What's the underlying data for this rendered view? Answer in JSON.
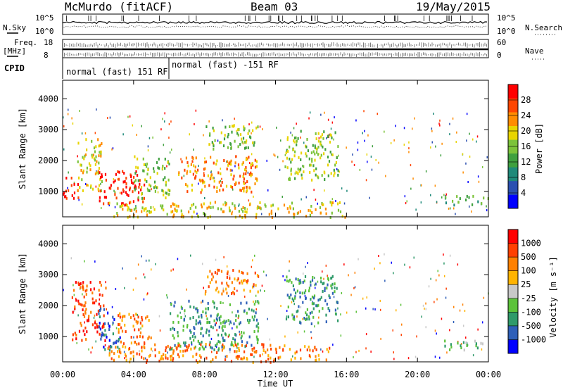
{
  "header": {
    "station": "McMurdo (fitACF)",
    "beam": "Beam 03",
    "date": "19/May/2015"
  },
  "top_panels": {
    "nsky_label": "N.Sky",
    "nsearch_label": "N.Search",
    "nsky_ticks": [
      "10^5",
      "10^0"
    ],
    "nsearch_ticks": [
      "10^5",
      "10^0"
    ],
    "freq_label_1": "Freq.",
    "freq_label_2": "[MHz]",
    "freq_ticks": [
      "18",
      "8"
    ],
    "nave_label": "Nave",
    "nave_ticks": [
      "60",
      "0"
    ],
    "cpid_label": "CPID",
    "cpid_segments": [
      {
        "label": "normal (fast) 151 RF",
        "start_hour": 0,
        "end_hour": 6
      },
      {
        "label": "normal (fast) -151 RF",
        "start_hour": 6,
        "end_hour": 24
      }
    ]
  },
  "chart_data": [
    {
      "type": "heatmap",
      "name": "Power",
      "ylabel": "Slant Range [km]",
      "xlabel": "",
      "yticks": [
        1000,
        2000,
        3000,
        4000
      ],
      "ylim": [
        180,
        4600
      ],
      "xlim": [
        0,
        24
      ],
      "colorbar": {
        "label": "Power [dB]",
        "ticks": [
          "28",
          "24",
          "20",
          "16",
          "12",
          "8",
          "4"
        ],
        "colors": [
          "#0000ff",
          "#2b50b0",
          "#1f8a7a",
          "#3fa03f",
          "#7cc33a",
          "#e8d400",
          "#ff8c00",
          "#ff4500",
          "#ff0000"
        ]
      },
      "regions": [
        {
          "t0": 0.0,
          "t1": 0.9,
          "r0": 800,
          "r1": 1500,
          "level": 8
        },
        {
          "t0": 0.8,
          "t1": 2.2,
          "r0": 1000,
          "r1": 2800,
          "level": 5
        },
        {
          "t0": 2.0,
          "t1": 4.6,
          "r0": 600,
          "r1": 1700,
          "level": 8
        },
        {
          "t0": 4.0,
          "t1": 6.0,
          "r0": 800,
          "r1": 2200,
          "level": 4
        },
        {
          "t0": 6.5,
          "t1": 11.0,
          "r0": 1000,
          "r1": 2200,
          "level": 6
        },
        {
          "t0": 8.0,
          "t1": 11.0,
          "r0": 2400,
          "r1": 3200,
          "level": 4
        },
        {
          "t0": 12.5,
          "t1": 15.5,
          "r0": 1400,
          "r1": 3000,
          "level": 4
        },
        {
          "t0": 2.5,
          "t1": 16.0,
          "r0": 200,
          "r1": 700,
          "level": 5
        },
        {
          "t0": 21.5,
          "t1": 24.0,
          "r0": 600,
          "r1": 900,
          "level": 3
        }
      ]
    },
    {
      "type": "heatmap",
      "name": "Velocity",
      "ylabel": "Slant Range [km]",
      "xlabel": "Time UT",
      "yticks": [
        1000,
        2000,
        3000,
        4000
      ],
      "ylim": [
        180,
        4600
      ],
      "xlim": [
        0,
        24
      ],
      "xticks": [
        "00:00",
        "04:00",
        "08:00",
        "12:00",
        "16:00",
        "20:00",
        "00:00"
      ],
      "colorbar": {
        "label": "Velocity [m s⁻¹]",
        "ticks": [
          "1000",
          "500",
          "100",
          "25",
          "-25",
          "-100",
          "-500",
          "-1000"
        ],
        "colors": [
          "#0000ff",
          "#2e5fb8",
          "#2f9a6a",
          "#5cc23a",
          "#c8c8c8",
          "#ffb300",
          "#ff8000",
          "#ff4000",
          "#ff0000"
        ]
      },
      "regions": [
        {
          "t0": 0.5,
          "t1": 2.4,
          "r0": 900,
          "r1": 2800,
          "level": 7
        },
        {
          "t0": 2.0,
          "t1": 3.2,
          "r0": 600,
          "r1": 2000,
          "level": 1
        },
        {
          "t0": 3.0,
          "t1": 5.0,
          "r0": 800,
          "r1": 1800,
          "level": 6
        },
        {
          "t0": 6.0,
          "t1": 11.0,
          "r0": 600,
          "r1": 2200,
          "level": 2
        },
        {
          "t0": 8.0,
          "t1": 11.0,
          "r0": 2400,
          "r1": 3200,
          "level": 6
        },
        {
          "t0": 12.5,
          "t1": 15.5,
          "r0": 1400,
          "r1": 3000,
          "level": 2
        },
        {
          "t0": 2.5,
          "t1": 15.0,
          "r0": 200,
          "r1": 800,
          "level": 6
        },
        {
          "t0": 21.5,
          "t1": 24.0,
          "r0": 600,
          "r1": 900,
          "level": 3
        }
      ]
    }
  ]
}
